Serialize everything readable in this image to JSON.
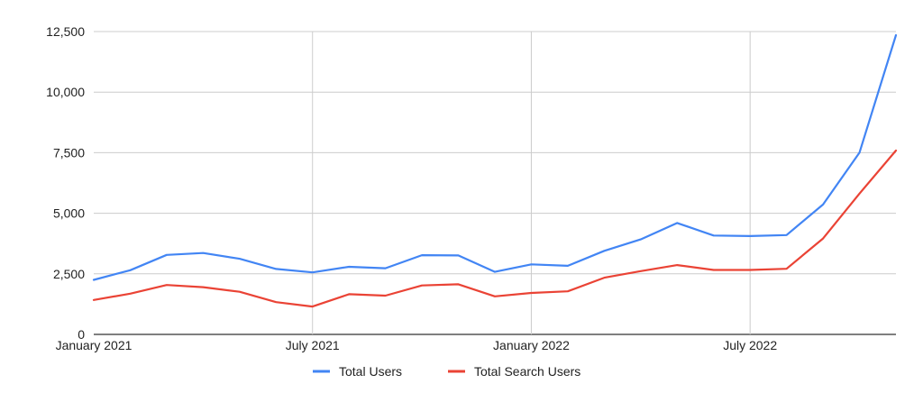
{
  "chart_data": {
    "type": "line",
    "title": "",
    "xlabel": "",
    "ylabel": "",
    "x": [
      "Jan 2021",
      "Feb 2021",
      "Mar 2021",
      "Apr 2021",
      "May 2021",
      "Jun 2021",
      "Jul 2021",
      "Aug 2021",
      "Sep 2021",
      "Oct 2021",
      "Nov 2021",
      "Dec 2021",
      "Jan 2022",
      "Feb 2022",
      "Mar 2022",
      "Apr 2022",
      "May 2022",
      "Jun 2022",
      "Jul 2022",
      "Aug 2022",
      "Sep 2022",
      "Oct 2022",
      "Nov 2022"
    ],
    "x_tick_labels": [
      {
        "index": 0,
        "label": "January 2021"
      },
      {
        "index": 6,
        "label": "July 2021"
      },
      {
        "index": 12,
        "label": "January 2022"
      },
      {
        "index": 18,
        "label": "July 2022"
      }
    ],
    "ylim": [
      0,
      12500
    ],
    "y_ticks": [
      0,
      2500,
      5000,
      7500,
      10000,
      12500
    ],
    "y_tick_labels": [
      "0",
      "2,500",
      "5,000",
      "7,500",
      "10,000",
      "12,500"
    ],
    "grid": true,
    "legend_position": "bottom",
    "series": [
      {
        "name": "Total Users",
        "color": "#4285F4",
        "values": [
          2250,
          2650,
          3280,
          3360,
          3120,
          2700,
          2560,
          2790,
          2730,
          3270,
          3260,
          2580,
          2890,
          2830,
          3450,
          3920,
          4600,
          4080,
          4060,
          4100,
          5360,
          7500,
          12350
        ]
      },
      {
        "name": "Total Search Users",
        "color": "#EA4335",
        "values": [
          1420,
          1680,
          2040,
          1950,
          1760,
          1330,
          1150,
          1660,
          1600,
          2020,
          2070,
          1570,
          1710,
          1780,
          2340,
          2610,
          2860,
          2660,
          2660,
          2710,
          3960,
          5810,
          7590
        ]
      }
    ]
  }
}
